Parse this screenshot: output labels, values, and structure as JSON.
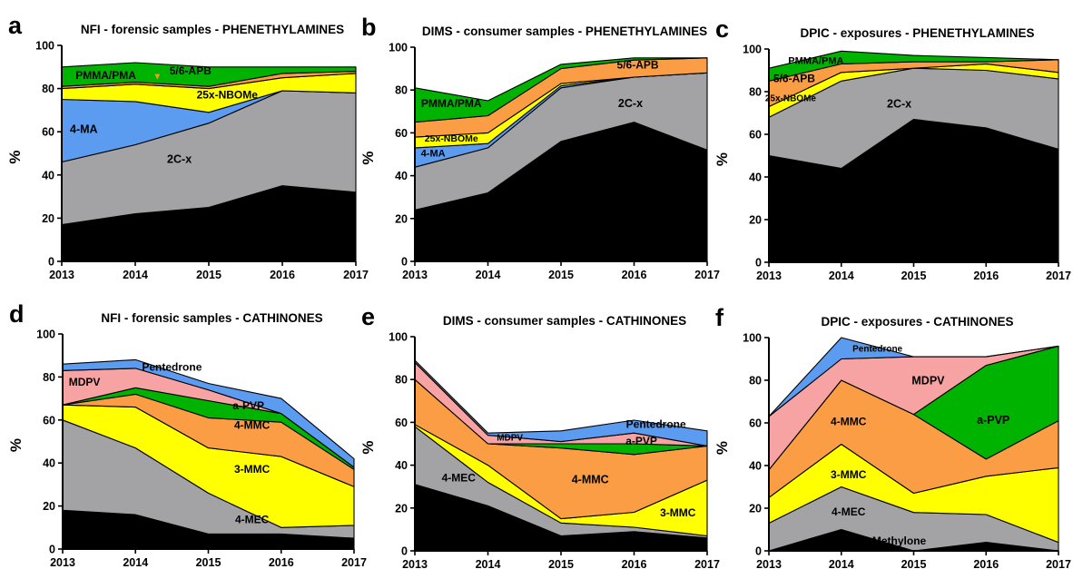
{
  "x": [
    2013,
    2014,
    2015,
    2016,
    2017
  ],
  "y_ticks": [
    0,
    20,
    40,
    60,
    80,
    100
  ],
  "ylabel": "%",
  "colors": {
    "4-FA": "#000000",
    "2C-x": "#a3a3a6",
    "4-MA": "#5b9bf0",
    "25x-NBOMe": "#ffff00",
    "5/6-APB": "#fb9d45",
    "PMMA/PMA": "#00b300",
    "Methylone": "#000000",
    "4-MEC": "#a3a3a6",
    "3-MMC": "#ffff00",
    "4-MMC": "#fb9d45",
    "a-PVP": "#00b300",
    "MDPV": "#f7a3a3",
    "Pentedrone": "#5b9bf0",
    "orange_label": "#f39c1f"
  },
  "chart_data": [
    {
      "letter": "a",
      "title": "NFI - forensic samples - PHENETHYLAMINES",
      "type": "area",
      "stacked": true,
      "ylim": [
        0,
        100
      ],
      "series": [
        {
          "name": "4-FA",
          "values": [
            17,
            22,
            25,
            35,
            32
          ]
        },
        {
          "name": "2C-x",
          "values": [
            29,
            32,
            39,
            44,
            46
          ]
        },
        {
          "name": "4-MA",
          "values": [
            29,
            20,
            5,
            0,
            0
          ]
        },
        {
          "name": "25x-NBOMe",
          "values": [
            5,
            8,
            11,
            6,
            9
          ]
        },
        {
          "name": "5/6-APB",
          "values": [
            1,
            1,
            1,
            2,
            1
          ]
        },
        {
          "name": "PMMA/PMA",
          "values": [
            9,
            9,
            9,
            3,
            2
          ]
        }
      ]
    },
    {
      "letter": "b",
      "title": "DIMS - consumer samples - PHENETHYLAMINES",
      "type": "area",
      "stacked": true,
      "ylim": [
        0,
        100
      ],
      "series": [
        {
          "name": "4-FA",
          "values": [
            24,
            32,
            56,
            65,
            52
          ]
        },
        {
          "name": "2C-x",
          "values": [
            20,
            21,
            25,
            21,
            36
          ]
        },
        {
          "name": "4-MA",
          "values": [
            9,
            2,
            1,
            0,
            0
          ]
        },
        {
          "name": "25x-NBOMe",
          "values": [
            5,
            5,
            1,
            0,
            0
          ]
        },
        {
          "name": "5/6-APB",
          "values": [
            7,
            8,
            7,
            8,
            7
          ]
        },
        {
          "name": "PMMA/PMA",
          "values": [
            16,
            7,
            2,
            1,
            0
          ]
        }
      ]
    },
    {
      "letter": "c",
      "title": "DPIC - exposures - PHENETHYLAMINES",
      "type": "area",
      "stacked": true,
      "ylim": [
        0,
        100
      ],
      "series": [
        {
          "name": "4-FA",
          "values": [
            50,
            44,
            67,
            63,
            53
          ]
        },
        {
          "name": "2C-x",
          "values": [
            18,
            41,
            24,
            27,
            33
          ]
        },
        {
          "name": "25x-NBOMe",
          "values": [
            5,
            4,
            0,
            3,
            3
          ]
        },
        {
          "name": "5/6-APB",
          "values": [
            12,
            4,
            3,
            1,
            6
          ]
        },
        {
          "name": "PMMA/PMA",
          "values": [
            6,
            6,
            3,
            2,
            0
          ]
        }
      ]
    },
    {
      "letter": "d",
      "title": "NFI - forensic samples - CATHINONES",
      "type": "area",
      "stacked": true,
      "ylim": [
        0,
        100
      ],
      "series": [
        {
          "name": "Methylone",
          "values": [
            18,
            16,
            7,
            7,
            5
          ]
        },
        {
          "name": "4-MEC",
          "values": [
            42,
            31,
            19,
            3,
            6
          ]
        },
        {
          "name": "3-MMC",
          "values": [
            7,
            19,
            21,
            33,
            18
          ]
        },
        {
          "name": "4-MMC",
          "values": [
            0,
            6,
            14,
            16,
            8
          ]
        },
        {
          "name": "a-PVP",
          "values": [
            0,
            3,
            8,
            4,
            1
          ]
        },
        {
          "name": "MDPV",
          "values": [
            16,
            9,
            5,
            0,
            0
          ]
        },
        {
          "name": "Pentedrone",
          "values": [
            3,
            4,
            3,
            7,
            4
          ]
        }
      ]
    },
    {
      "letter": "e",
      "title": "DIMS - consumer samples - CATHINONES",
      "type": "area",
      "stacked": true,
      "ylim": [
        0,
        100
      ],
      "series": [
        {
          "name": "Methylone",
          "values": [
            31,
            21,
            7,
            9,
            6
          ]
        },
        {
          "name": "4-MEC",
          "values": [
            27,
            11,
            6,
            2,
            1
          ]
        },
        {
          "name": "3-MMC",
          "values": [
            1,
            8,
            2,
            7,
            26
          ]
        },
        {
          "name": "4-MMC",
          "values": [
            21,
            10,
            33,
            27,
            16
          ]
        },
        {
          "name": "a-PVP",
          "values": [
            0,
            0,
            2,
            5,
            0
          ]
        },
        {
          "name": "MDPV",
          "values": [
            8,
            4,
            1,
            5,
            0
          ]
        },
        {
          "name": "Pentedrone",
          "values": [
            1,
            1,
            5,
            6,
            7
          ]
        }
      ]
    },
    {
      "letter": "f",
      "title": "DPIC - exposures - CATHINONES",
      "type": "area",
      "stacked": true,
      "ylim": [
        0,
        100
      ],
      "series": [
        {
          "name": "Methylone",
          "values": [
            0,
            10,
            0,
            4,
            0
          ]
        },
        {
          "name": "4-MEC",
          "values": [
            13,
            20,
            18,
            13,
            4
          ]
        },
        {
          "name": "3-MMC",
          "values": [
            12,
            20,
            9,
            18,
            35
          ]
        },
        {
          "name": "4-MMC",
          "values": [
            13,
            30,
            37,
            8,
            22
          ]
        },
        {
          "name": "a-PVP",
          "values": [
            0,
            0,
            0,
            44,
            35
          ]
        },
        {
          "name": "MDPV",
          "values": [
            25,
            10,
            27,
            4,
            0
          ]
        },
        {
          "name": "Pentedrone",
          "values": [
            0,
            10,
            0,
            0,
            0
          ]
        }
      ]
    }
  ],
  "labels": [
    [
      {
        "text": "PMMA/PMA",
        "x": 2013.6,
        "y": 84.5,
        "size": 12
      },
      {
        "text": "5/6-APB",
        "x": 2014.75,
        "y": 86.5,
        "size": 12,
        "color_key": "orange_label"
      },
      {
        "text": "25x-NBOMe",
        "x": 2015.25,
        "y": 75.5,
        "size": 12
      },
      {
        "text": "4-MA",
        "x": 2013.3,
        "y": 59.5,
        "size": 12.5
      },
      {
        "text": "2C-x",
        "x": 2014.6,
        "y": 45.5,
        "size": 12.5
      },
      {
        "text": "4-FA",
        "x": 2014.6,
        "y": 11.5,
        "size": 12.5,
        "color": "#ffffff"
      }
    ],
    [
      {
        "text": "PMMA/PMA",
        "x": 2013.5,
        "y": 72,
        "size": 12
      },
      {
        "text": "5/6-APB",
        "x": 2016.05,
        "y": 90,
        "size": 12
      },
      {
        "text": "25x-NBOMe",
        "x": 2013.5,
        "y": 56,
        "size": 10.5
      },
      {
        "text": "4-MA",
        "x": 2013.25,
        "y": 49,
        "size": 11
      },
      {
        "text": "2C-x",
        "x": 2015.95,
        "y": 72,
        "size": 12.5
      },
      {
        "text": "4-FA",
        "x": 2015.95,
        "y": 24.5,
        "size": 12.5,
        "color": "#ffffff"
      }
    ],
    [
      {
        "text": "PMMA/PMA",
        "x": 2013.65,
        "y": 93,
        "size": 11
      },
      {
        "text": "5/6-APB",
        "x": 2013.35,
        "y": 84.5,
        "size": 12
      },
      {
        "text": "25x-NBOMe",
        "x": 2013.3,
        "y": 75.5,
        "size": 10
      },
      {
        "text": "2C-x",
        "x": 2014.8,
        "y": 72.5,
        "size": 12.5
      },
      {
        "text": "4-FA",
        "x": 2014.8,
        "y": 15.5,
        "size": 12.5,
        "color": "#ffffff"
      }
    ],
    [
      {
        "text": "Pentedrone",
        "x": 2014.5,
        "y": 83,
        "size": 12
      },
      {
        "text": "MDPV",
        "x": 2013.3,
        "y": 76,
        "size": 12
      },
      {
        "text": "a-PVP",
        "x": 2015.55,
        "y": 65,
        "size": 12
      },
      {
        "text": "4-MMC",
        "x": 2015.6,
        "y": 56,
        "size": 12
      },
      {
        "text": "3-MMC",
        "x": 2015.6,
        "y": 35.5,
        "size": 12
      },
      {
        "text": "4-MEC",
        "x": 2015.6,
        "y": 12,
        "size": 12
      },
      {
        "text": "Methylone",
        "x": 2014.7,
        "y": 4,
        "size": 12,
        "color": "#ffffff"
      }
    ],
    [
      {
        "text": "Pentedrone",
        "x": 2016.3,
        "y": 57.5,
        "size": 12
      },
      {
        "text": "MDPV",
        "x": 2014.3,
        "y": 51.5,
        "size": 10
      },
      {
        "text": "a-PVP",
        "x": 2016.1,
        "y": 49.5,
        "size": 12
      },
      {
        "text": "4-MMC",
        "x": 2015.4,
        "y": 31.5,
        "size": 12.5
      },
      {
        "text": "4-MEC",
        "x": 2013.6,
        "y": 32.5,
        "size": 12
      },
      {
        "text": "3-MMC",
        "x": 2016.6,
        "y": 16,
        "size": 12
      },
      {
        "text": "Methylone",
        "x": 2013.75,
        "y": 8,
        "size": 12,
        "color": "#ffffff"
      }
    ],
    [
      {
        "text": "Pentedrone",
        "x": 2014.5,
        "y": 93.5,
        "size": 10
      },
      {
        "text": "MDPV",
        "x": 2015.2,
        "y": 78,
        "size": 12.5
      },
      {
        "text": "a-PVP",
        "x": 2016.1,
        "y": 59.5,
        "size": 12.5
      },
      {
        "text": "4-MMC",
        "x": 2014.1,
        "y": 59,
        "size": 12
      },
      {
        "text": "3-MMC",
        "x": 2014.1,
        "y": 34,
        "size": 12
      },
      {
        "text": "4-MEC",
        "x": 2014.1,
        "y": 16.5,
        "size": 12
      },
      {
        "text": "Methylone",
        "x": 2014.8,
        "y": 3,
        "size": 12,
        "color": "#ffffff"
      }
    ]
  ]
}
